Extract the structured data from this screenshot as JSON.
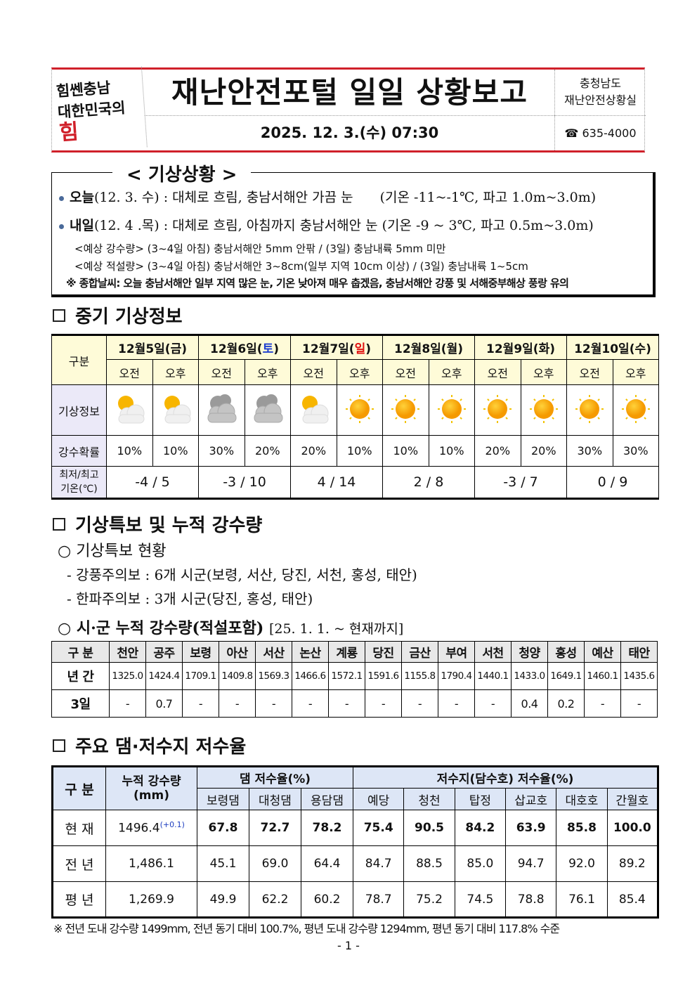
{
  "header": {
    "logo_line1": "힘쎈충남",
    "logo_line2": "대한민국의",
    "logo_red": "힘",
    "title": "재난안전포털 일일 상황보고",
    "date": "2025. 12. 3.(수) 07:30",
    "org_line1": "충청남도",
    "org_line2": "재난안전상황실",
    "tel": "☎ 635-4000"
  },
  "weather": {
    "title": "< 기상상황 >",
    "today_label": "오늘",
    "today_text": "(12. 3. 수) : 대체로 흐림, 충남서해안 가끔 눈　　(기온 -11~-1℃, 파고 1.0m~3.0m)",
    "tomorrow_label": "내일",
    "tomorrow_text": "(12. 4 .목) : 대체로 흐림, 아침까지 충남서해안 눈 (기온 -9 ~ 3℃, 파고 0.5m~3.0m)",
    "rain": "<예상 강수량> (3~4일 아침) 충남서해안 5mm 안팎 / (3일) 충남내륙 5mm 미만",
    "snow": "<예상 적설량> (3~4일 아침) 충남서해안 3~8cm(일부 지역 10cm 이상) / (3일) 충남내륙 1~5cm",
    "summary": "※ 종합날씨: 오늘 충남서해안 일부 지역 많은 눈, 기온 낮아져 매우 춥겠음, 충남서해안 강풍 및 서해중부해상 풍랑 유의"
  },
  "forecast": {
    "section_title": "중기 기상정보",
    "col_label": "구분",
    "am": "오전",
    "pm": "오후",
    "row_weather": "기상정보",
    "row_prob": "강수확률",
    "row_temp1": "최저/최고",
    "row_temp2": "기온(℃)",
    "days": [
      {
        "date": "12월5일(",
        "dow": "금",
        "close": ")",
        "dow_color": "#111111",
        "icons": [
          "partly-cloudy",
          "partly-cloudy"
        ],
        "prob": [
          "10%",
          "10%"
        ],
        "temp": "-4 / 5"
      },
      {
        "date": "12월6일(",
        "dow": "토",
        "close": ")",
        "dow_color": "#1f3fd0",
        "icons": [
          "cloudy",
          "cloudy"
        ],
        "prob": [
          "30%",
          "20%"
        ],
        "temp": "-3 / 10"
      },
      {
        "date": "12월7일(",
        "dow": "일",
        "close": ")",
        "dow_color": "#e01010",
        "icons": [
          "partly-cloudy",
          "sunny"
        ],
        "prob": [
          "20%",
          "10%"
        ],
        "temp": "4 / 14"
      },
      {
        "date": "12월8일(",
        "dow": "월",
        "close": ")",
        "dow_color": "#111111",
        "icons": [
          "sunny",
          "sunny"
        ],
        "prob": [
          "10%",
          "10%"
        ],
        "temp": "2 / 8"
      },
      {
        "date": "12월9일(",
        "dow": "화",
        "close": ")",
        "dow_color": "#111111",
        "icons": [
          "sunny",
          "sunny"
        ],
        "prob": [
          "20%",
          "20%"
        ],
        "temp": "-3 / 7"
      },
      {
        "date": "12월10일(",
        "dow": "수",
        "close": ")",
        "dow_color": "#111111",
        "icons": [
          "sunny",
          "sunny"
        ],
        "prob": [
          "30%",
          "30%"
        ],
        "temp": "0 / 9"
      }
    ]
  },
  "warnings": {
    "section_title": "기상특보 및 누적 강수량",
    "sub1": "○ 기상특보 현황",
    "item1": "- 강풍주의보 : 6개 시군(보령, 서산, 당진, 서천, 홍성, 태안)",
    "item2": "- 한파주의보 : 3개 시군(당진, 홍성, 태안)",
    "sub2": "○ 시·군 누적 강수량(적설포함)",
    "sub2_period": "[25. 1. 1. ~ 현재까지]"
  },
  "city_rain": {
    "header": "구 분",
    "row1": "년 간",
    "row2": "3일",
    "cities": [
      "천안",
      "공주",
      "보령",
      "아산",
      "서산",
      "논산",
      "계룡",
      "당진",
      "금산",
      "부여",
      "서천",
      "청양",
      "홍성",
      "예산",
      "태안"
    ],
    "annual": [
      "1325.0",
      "1424.4",
      "1709.1",
      "1409.8",
      "1569.3",
      "1466.6",
      "1572.1",
      "1591.6",
      "1155.8",
      "1790.4",
      "1440.1",
      "1433.0",
      "1649.1",
      "1460.1",
      "1435.6"
    ],
    "today": [
      "-",
      "0.7",
      "-",
      "-",
      "-",
      "-",
      "-",
      "-",
      "-",
      "-",
      "-",
      "0.4",
      "0.2",
      "-",
      "-"
    ]
  },
  "reservoir": {
    "section_title": "주요 댐·저수지 저수율",
    "col_label": "구 분",
    "acc_label1": "누적 강수량",
    "acc_label2": "(mm)",
    "dam_group": "댐 저수율(%)",
    "res_group": "저수지(담수호) 저수율(%)",
    "cols": [
      "보령댐",
      "대청댐",
      "용담댐",
      "예당",
      "청천",
      "탑정",
      "삽교호",
      "대호호",
      "간월호"
    ],
    "rows": [
      {
        "label": "현 재",
        "acc": "1496.4",
        "acc_delta": "(+0.1)",
        "values": [
          "67.8",
          "72.7",
          "78.2",
          "75.4",
          "90.5",
          "84.2",
          "63.9",
          "85.8",
          "100.0"
        ]
      },
      {
        "label": "전 년",
        "acc": "1,486.1",
        "values": [
          "45.1",
          "69.0",
          "64.4",
          "84.7",
          "88.5",
          "85.0",
          "94.7",
          "92.0",
          "89.2"
        ]
      },
      {
        "label": "평 년",
        "acc": "1,269.9",
        "values": [
          "49.9",
          "62.2",
          "60.2",
          "78.7",
          "75.2",
          "74.5",
          "78.8",
          "76.1",
          "85.4"
        ]
      }
    ],
    "footnote": "※ 전년 도내 강수량 1499mm, 전년 동기 대비 100.7%, 평년 도내 강수량 1294mm, 평년 동기 대비 117.8% 수준"
  },
  "page": "- 1 -"
}
